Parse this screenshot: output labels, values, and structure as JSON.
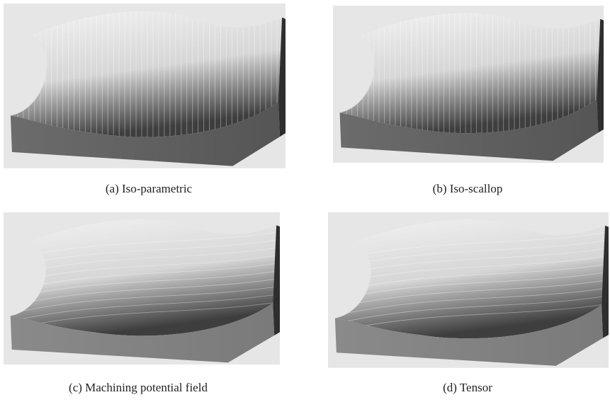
{
  "figure": {
    "panels": [
      {
        "caption": "(a)  Iso-parametric"
      },
      {
        "caption": "(b)  Iso-scallop"
      },
      {
        "caption": "(c)  Machining potential field"
      },
      {
        "caption": "(d)  Tensor"
      }
    ]
  }
}
